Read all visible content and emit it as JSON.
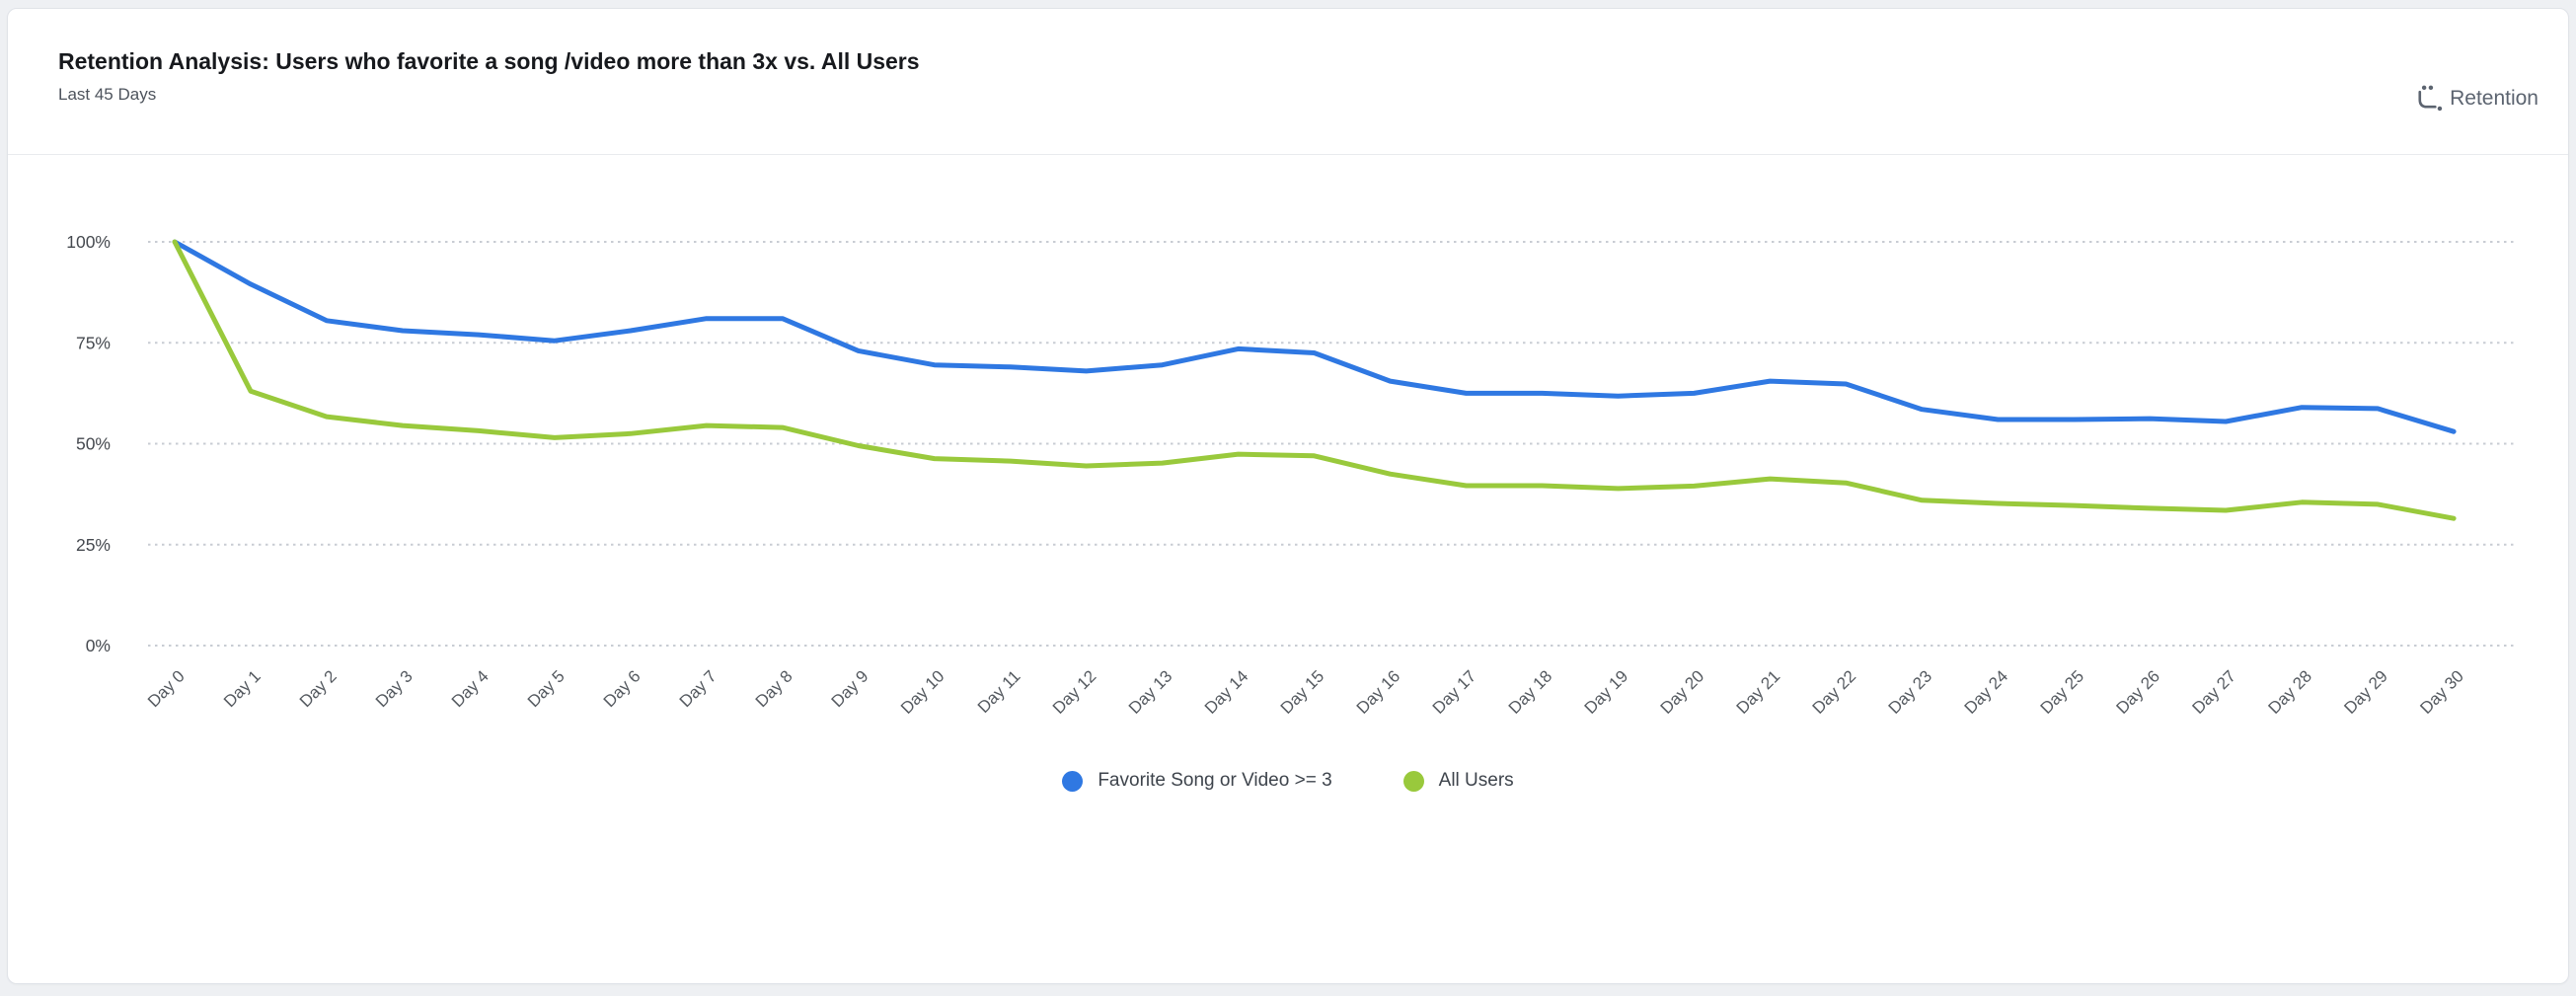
{
  "header": {
    "title": "Retention Analysis: Users who favorite a song /video more than 3x vs. All Users",
    "subtitle": "Last 45 Days",
    "chart_type_label": "Retention"
  },
  "legend": [
    {
      "label": "Favorite Song or Video >= 3",
      "color": "#2f78e2"
    },
    {
      "label": "All Users",
      "color": "#99c93c"
    }
  ],
  "chart_data": {
    "type": "line",
    "title": "Retention Analysis: Users who favorite a song /video more than 3x vs. All Users",
    "subtitle": "Last 45 Days",
    "xlabel": "",
    "ylabel": "",
    "unit": "%",
    "ylim": [
      0,
      100
    ],
    "grid": "horizontal-dotted",
    "legend_position": "bottom-center",
    "yticks": [
      {
        "value": 0,
        "label": "0%"
      },
      {
        "value": 25,
        "label": "25%"
      },
      {
        "value": 50,
        "label": "50%"
      },
      {
        "value": 75,
        "label": "75%"
      },
      {
        "value": 100,
        "label": "100%"
      }
    ],
    "categories": [
      "Day 0",
      "Day 1",
      "Day 2",
      "Day 3",
      "Day 4",
      "Day 5",
      "Day 6",
      "Day 7",
      "Day 8",
      "Day 9",
      "Day 10",
      "Day 11",
      "Day 12",
      "Day 13",
      "Day 14",
      "Day 15",
      "Day 16",
      "Day 17",
      "Day 18",
      "Day 19",
      "Day 20",
      "Day 21",
      "Day 22",
      "Day 23",
      "Day 24",
      "Day 25",
      "Day 26",
      "Day 27",
      "Day 28",
      "Day 29",
      "Day 30"
    ],
    "series": [
      {
        "name": "Favorite Song or Video >= 3",
        "color": "#2f78e2",
        "values": [
          100,
          89.5,
          80.5,
          78,
          77,
          75.5,
          78,
          81,
          81,
          73,
          69.5,
          69,
          68,
          69.5,
          73.5,
          72.5,
          65.5,
          62.5,
          62.5,
          61.8,
          62.5,
          65.5,
          64.8,
          58.5,
          56,
          56,
          56.2,
          55.5,
          59,
          58.7,
          53
        ]
      },
      {
        "name": "All Users",
        "color": "#99c93c",
        "values": [
          100,
          63,
          56.7,
          54.5,
          53.2,
          51.5,
          52.5,
          54.5,
          54,
          49.5,
          46.3,
          45.7,
          44.5,
          45.2,
          47.4,
          47,
          42.5,
          39.6,
          39.6,
          38.9,
          39.5,
          41.3,
          40.3,
          36,
          35.2,
          34.7,
          34,
          33.5,
          35.5,
          35,
          31.5
        ]
      }
    ]
  }
}
